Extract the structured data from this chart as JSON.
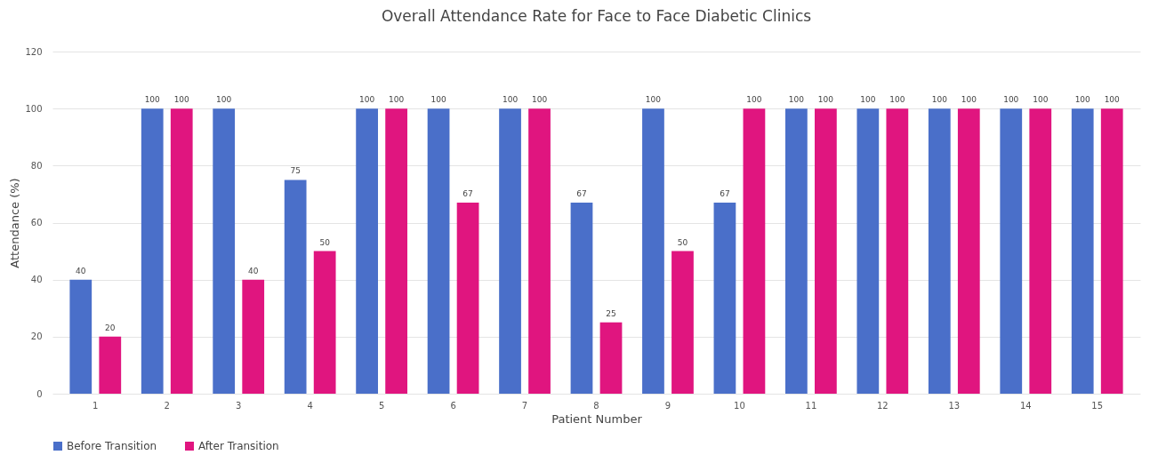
{
  "chart_data": {
    "type": "bar",
    "title": "Overall Attendance Rate for Face to Face Diabetic Clinics",
    "xlabel": "Patient Number",
    "ylabel": "Attendance (%)",
    "categories": [
      "1",
      "2",
      "3",
      "4",
      "5",
      "6",
      "7",
      "8",
      "9",
      "10",
      "11",
      "12",
      "13",
      "14",
      "15"
    ],
    "series": [
      {
        "name": "Before Transition",
        "color": "#4a6fc9",
        "values": [
          40,
          100,
          100,
          75,
          100,
          100,
          100,
          67,
          100,
          67,
          100,
          100,
          100,
          100,
          100
        ]
      },
      {
        "name": "After Transition",
        "color": "#e0157f",
        "values": [
          20,
          100,
          40,
          50,
          100,
          67,
          100,
          25,
          50,
          100,
          100,
          100,
          100,
          100,
          100
        ]
      }
    ],
    "ylim": [
      0,
      120
    ],
    "yticks": [
      0,
      20,
      40,
      60,
      80,
      100,
      120
    ],
    "grid": "y",
    "legend": "bottom",
    "data_labels": true
  }
}
